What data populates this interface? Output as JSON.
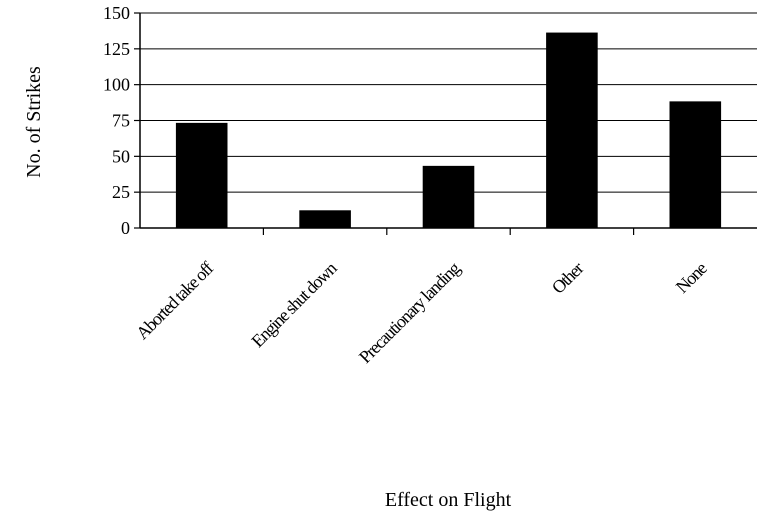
{
  "chart_data": {
    "type": "bar",
    "title": "",
    "xlabel": "Effect on Flight",
    "ylabel": "No. of Strikes",
    "categories": [
      "Aborted take off",
      "Engine shut down",
      "Precautionary landing",
      "Other",
      "None"
    ],
    "values": [
      73,
      12,
      43,
      136,
      88
    ],
    "ylim": [
      0,
      150
    ],
    "yticks": [
      0,
      25,
      50,
      75,
      100,
      125,
      150
    ],
    "grid": true,
    "bar_color": "#000000",
    "legend": "none"
  }
}
